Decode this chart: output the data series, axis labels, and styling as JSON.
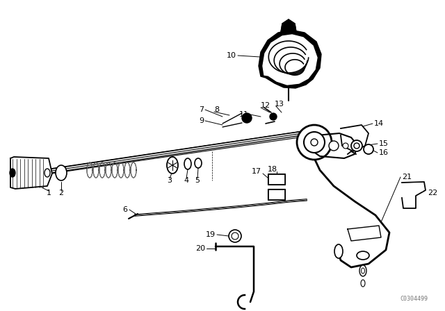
{
  "background_color": "#ffffff",
  "diagram_color": "#000000",
  "watermark": "C0304499",
  "fig_width": 6.4,
  "fig_height": 4.48,
  "dpi": 100
}
